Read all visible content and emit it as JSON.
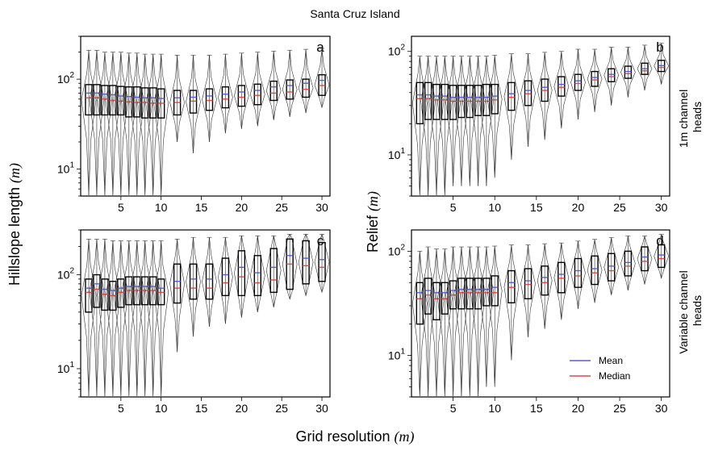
{
  "figure": {
    "title": "Santa Cruz Island",
    "xlabel_text": "Grid resolution ",
    "xlabel_unit": "(m)",
    "left_ylabel_text": "Hillslope length ",
    "left_ylabel_unit": "(m)",
    "right_ylabel_text": "Relief ",
    "right_ylabel_unit": "(m)",
    "row_labels": [
      [
        "1m channel",
        "heads"
      ],
      [
        "Variable channel",
        "heads"
      ]
    ],
    "legend": [
      {
        "label": "Mean",
        "color": "#5b5bd6"
      },
      {
        "label": "Median",
        "color": "#d94a4a"
      }
    ]
  },
  "chart_data": [
    {
      "panel": "a",
      "type": "violin+box",
      "yscale": "log",
      "ylim": [
        5,
        300
      ],
      "yticks": [
        10,
        100
      ],
      "ytick_labels": [
        "10^1",
        "10^2"
      ],
      "xlim": [
        0,
        31
      ],
      "xticks": [
        5,
        10,
        15,
        20,
        25,
        30
      ],
      "xtick_labels": [
        "5",
        "10",
        "15",
        "20",
        "25",
        "30"
      ],
      "x": [
        1,
        2,
        3,
        4,
        5,
        6,
        7,
        8,
        9,
        10,
        12,
        14,
        16,
        18,
        20,
        22,
        24,
        26,
        28,
        30
      ],
      "q1": [
        40,
        40,
        40,
        40,
        40,
        38,
        38,
        37,
        37,
        37,
        40,
        42,
        45,
        48,
        50,
        52,
        58,
        60,
        63,
        66
      ],
      "q3": [
        87,
        87,
        85,
        85,
        83,
        82,
        82,
        80,
        80,
        78,
        75,
        75,
        78,
        82,
        85,
        88,
        95,
        98,
        100,
        112
      ],
      "mean": [
        70,
        70,
        68,
        67,
        65,
        64,
        63,
        62,
        62,
        61,
        62,
        63,
        65,
        68,
        72,
        75,
        82,
        85,
        90,
        97
      ],
      "median": [
        62,
        62,
        60,
        58,
        57,
        56,
        55,
        55,
        54,
        54,
        55,
        57,
        58,
        60,
        63,
        66,
        70,
        72,
        77,
        85
      ],
      "min": [
        5,
        5,
        5,
        5,
        5,
        5,
        5,
        5,
        5,
        5,
        20,
        15,
        20,
        25,
        28,
        30,
        35,
        38,
        42,
        48
      ],
      "max": [
        210,
        210,
        200,
        200,
        200,
        195,
        195,
        190,
        190,
        190,
        185,
        185,
        185,
        190,
        195,
        200,
        205,
        210,
        215,
        220
      ]
    },
    {
      "panel": "b",
      "type": "violin+box",
      "yscale": "log",
      "ylim": [
        4,
        140
      ],
      "yticks": [
        10,
        100
      ],
      "ytick_labels": [
        "10^1",
        "10^2"
      ],
      "xlim": [
        0,
        31
      ],
      "xticks": [
        5,
        10,
        15,
        20,
        25,
        30
      ],
      "xtick_labels": [
        "5",
        "10",
        "15",
        "20",
        "25",
        "30"
      ],
      "x": [
        1,
        2,
        3,
        4,
        5,
        6,
        7,
        8,
        9,
        10,
        12,
        14,
        16,
        18,
        20,
        22,
        24,
        26,
        28,
        30
      ],
      "q1": [
        20,
        22,
        22,
        22,
        22,
        23,
        23,
        24,
        24,
        25,
        27,
        30,
        33,
        37,
        42,
        46,
        51,
        55,
        60,
        64
      ],
      "q3": [
        50,
        50,
        48,
        48,
        47,
        47,
        47,
        47,
        48,
        48,
        50,
        52,
        54,
        57,
        60,
        64,
        68,
        72,
        77,
        82
      ],
      "mean": [
        38,
        38,
        37,
        37,
        36,
        36,
        36,
        36,
        36,
        37,
        39,
        42,
        45,
        48,
        52,
        56,
        60,
        64,
        68,
        73
      ],
      "median": [
        35,
        35,
        34,
        34,
        33,
        33,
        33,
        33,
        33,
        34,
        36,
        39,
        42,
        45,
        49,
        53,
        57,
        61,
        65,
        70
      ],
      "min": [
        4,
        4,
        4,
        4,
        5,
        5,
        5,
        5,
        5,
        6,
        9,
        12,
        14,
        18,
        22,
        26,
        30,
        36,
        42,
        48
      ],
      "max": [
        90,
        90,
        90,
        90,
        90,
        90,
        90,
        90,
        90,
        92,
        95,
        95,
        98,
        100,
        105,
        105,
        110,
        110,
        115,
        120
      ]
    },
    {
      "panel": "c",
      "type": "violin+box",
      "yscale": "log",
      "ylim": [
        5,
        300
      ],
      "yticks": [
        10,
        100
      ],
      "ytick_labels": [
        "10^1",
        "10^2"
      ],
      "xlim": [
        0,
        31
      ],
      "xticks": [
        5,
        10,
        15,
        20,
        25,
        30
      ],
      "xtick_labels": [
        "5",
        "10",
        "15",
        "20",
        "25",
        "30"
      ],
      "x": [
        1,
        2,
        3,
        4,
        5,
        6,
        7,
        8,
        9,
        10,
        12,
        14,
        16,
        18,
        20,
        22,
        24,
        26,
        28,
        30
      ],
      "q1": [
        40,
        45,
        42,
        42,
        45,
        48,
        48,
        48,
        48,
        48,
        50,
        55,
        55,
        60,
        60,
        60,
        65,
        70,
        80,
        85
      ],
      "q3": [
        90,
        100,
        90,
        85,
        90,
        95,
        95,
        95,
        95,
        90,
        130,
        130,
        130,
        150,
        180,
        160,
        190,
        240,
        230,
        220
      ],
      "mean": [
        72,
        80,
        70,
        68,
        72,
        75,
        75,
        75,
        75,
        72,
        85,
        90,
        90,
        100,
        120,
        105,
        120,
        160,
        150,
        145
      ],
      "median": [
        65,
        70,
        62,
        60,
        65,
        68,
        68,
        68,
        68,
        65,
        72,
        72,
        72,
        82,
        95,
        82,
        88,
        130,
        125,
        120
      ],
      "min": [
        5,
        5,
        5,
        5,
        5,
        5,
        5,
        5,
        5,
        5,
        15,
        22,
        28,
        30,
        35,
        40,
        45,
        55,
        60,
        65
      ],
      "max": [
        240,
        240,
        240,
        230,
        230,
        230,
        230,
        230,
        230,
        230,
        240,
        250,
        250,
        250,
        260,
        260,
        260,
        270,
        270,
        270
      ]
    },
    {
      "panel": "d",
      "type": "violin+box",
      "yscale": "log",
      "ylim": [
        4,
        160
      ],
      "yticks": [
        10,
        100
      ],
      "ytick_labels": [
        "10^1",
        "10^2"
      ],
      "xlim": [
        0,
        31
      ],
      "xticks": [
        5,
        10,
        15,
        20,
        25,
        30
      ],
      "xtick_labels": [
        "5",
        "10",
        "15",
        "20",
        "25",
        "30"
      ],
      "x": [
        1,
        2,
        3,
        4,
        5,
        6,
        7,
        8,
        9,
        10,
        12,
        14,
        16,
        18,
        20,
        22,
        24,
        26,
        28,
        30
      ],
      "q1": [
        20,
        25,
        22,
        25,
        28,
        28,
        28,
        28,
        30,
        30,
        32,
        35,
        38,
        40,
        45,
        48,
        52,
        58,
        65,
        70
      ],
      "q3": [
        50,
        55,
        50,
        50,
        52,
        55,
        55,
        55,
        55,
        58,
        65,
        68,
        72,
        78,
        85,
        90,
        95,
        100,
        110,
        115
      ],
      "mean": [
        40,
        42,
        40,
        40,
        42,
        43,
        43,
        43,
        43,
        45,
        50,
        52,
        56,
        60,
        65,
        68,
        72,
        78,
        88,
        92
      ],
      "median": [
        35,
        38,
        35,
        35,
        38,
        40,
        40,
        40,
        40,
        40,
        45,
        48,
        50,
        55,
        58,
        62,
        65,
        72,
        80,
        85
      ],
      "min": [
        4,
        4,
        4,
        4,
        4,
        4,
        4,
        4,
        5,
        5,
        9,
        15,
        18,
        22,
        28,
        32,
        38,
        42,
        48,
        55
      ],
      "max": [
        100,
        110,
        105,
        105,
        110,
        110,
        110,
        110,
        110,
        112,
        115,
        115,
        118,
        120,
        125,
        130,
        135,
        140,
        140,
        145
      ]
    }
  ]
}
